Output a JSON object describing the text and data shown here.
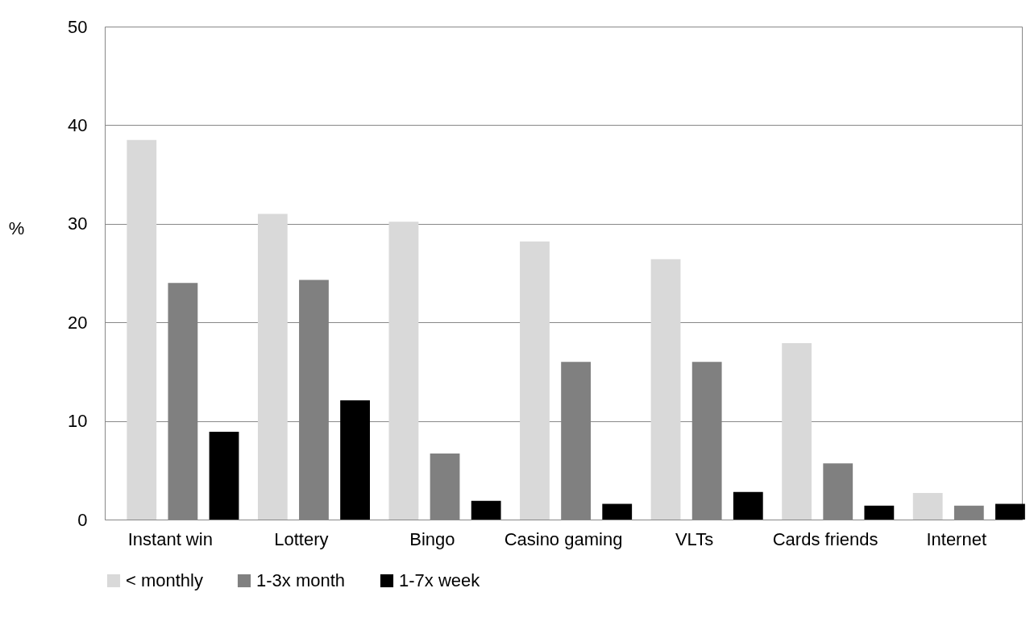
{
  "chart_data": {
    "type": "bar",
    "ylabel": "%",
    "categories": [
      "Instant win",
      "Lottery",
      "Bingo",
      "Casino gaming",
      "VLTs",
      "Cards friends",
      "Internet"
    ],
    "series": [
      {
        "name": "< monthly",
        "color": "#d9d9d9",
        "values": [
          38.5,
          31.0,
          30.2,
          28.2,
          26.4,
          17.9,
          2.7
        ]
      },
      {
        "name": "1-3x month",
        "color": "#808080",
        "values": [
          24.0,
          24.3,
          6.7,
          16.0,
          16.0,
          5.7,
          1.4
        ]
      },
      {
        "name": "1-7x week",
        "color": "#000000",
        "values": [
          8.9,
          12.1,
          1.9,
          1.6,
          2.8,
          1.4,
          1.6
        ]
      }
    ],
    "ylim": [
      0,
      50
    ],
    "yticks": [
      0,
      10,
      20,
      30,
      40,
      50
    ],
    "grid": "y",
    "legend": "bottom"
  }
}
